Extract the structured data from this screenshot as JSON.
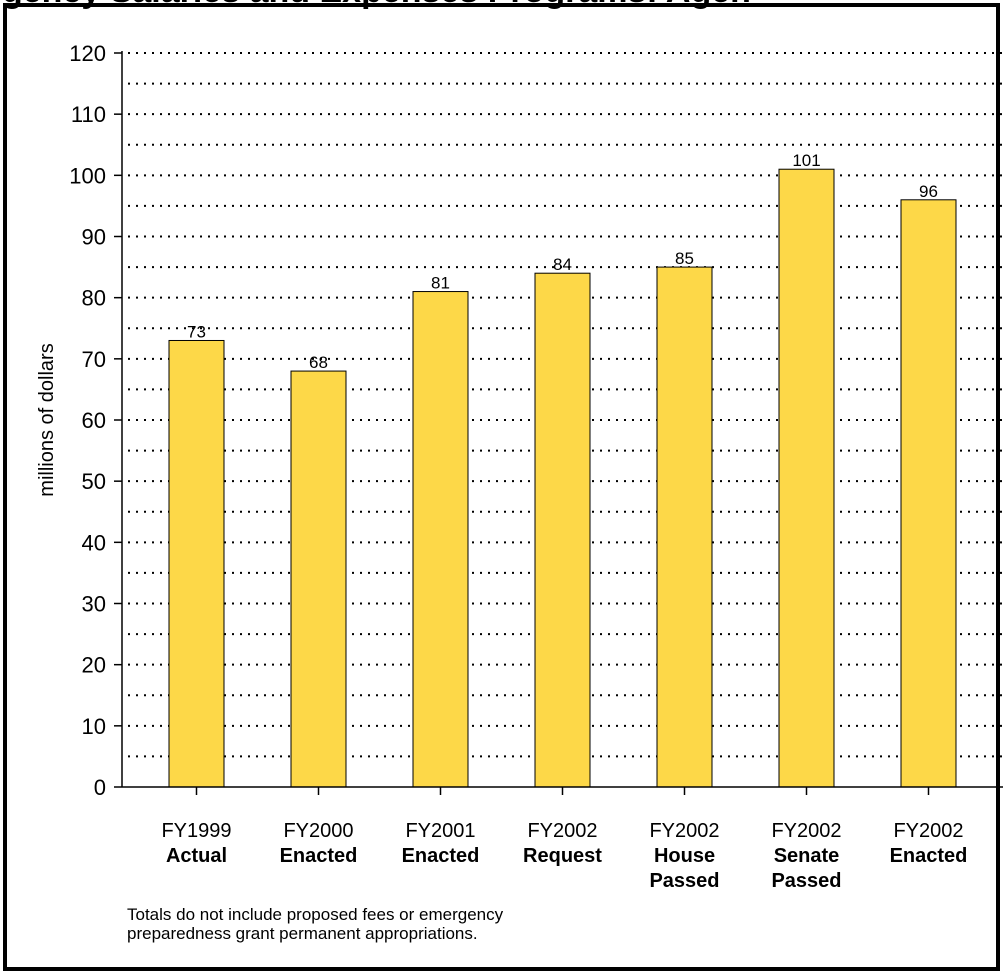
{
  "title": "gency Salaries and Expenses Programs: Agen",
  "chart_data": {
    "type": "bar",
    "ylabel": "millions of dollars",
    "xlabel": "",
    "ylim": [
      0,
      120
    ],
    "yticks": [
      0,
      10,
      20,
      30,
      40,
      50,
      60,
      70,
      80,
      90,
      100,
      110,
      120
    ],
    "grid": true,
    "bar_color": "#FDD848",
    "categories": [
      [
        "FY1999",
        "Actual"
      ],
      [
        "FY2000",
        "Enacted"
      ],
      [
        "FY2001",
        "Enacted"
      ],
      [
        "FY2002",
        "Request"
      ],
      [
        "FY2002",
        "House",
        "Passed"
      ],
      [
        "FY2002",
        "Senate",
        "Passed"
      ],
      [
        "FY2002",
        "Enacted"
      ]
    ],
    "values": [
      73,
      68,
      81,
      84,
      85,
      101,
      96
    ],
    "data_labels": [
      "73",
      "68",
      "81",
      "84",
      "85",
      "101",
      "96"
    ]
  },
  "footnote": {
    "line1": "Totals do not include proposed fees or emergency",
    "line2": "preparedness grant permanent appropriations."
  }
}
